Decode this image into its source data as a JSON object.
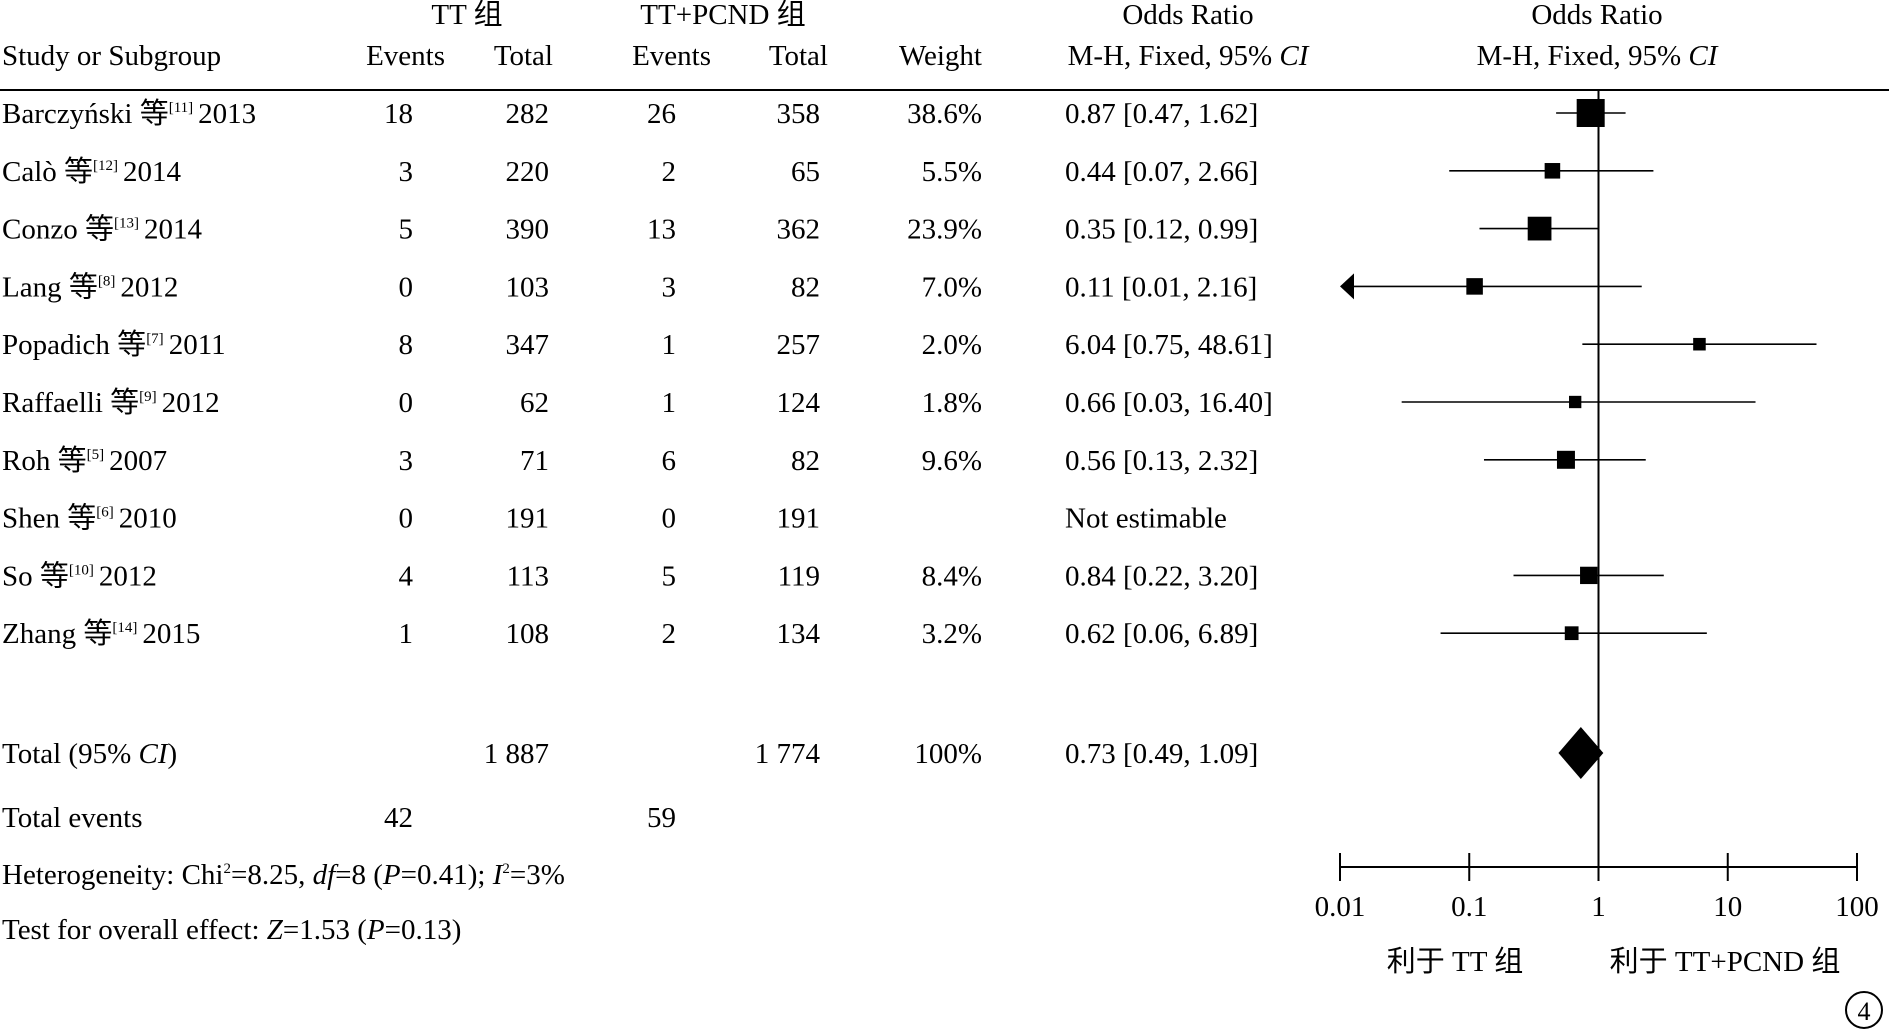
{
  "chart_data": {
    "type": "forest",
    "scale": "log",
    "xlim": [
      0.01,
      100
    ],
    "x_ticks": [
      "0.01",
      "0.1",
      "1",
      "10",
      "100"
    ],
    "x_tick_values": [
      0.01,
      0.1,
      1,
      10,
      100
    ],
    "group1_label": "TT 组",
    "group2_label": "TT+PCND 组",
    "header": {
      "study": "Study or Subgroup",
      "events": "Events",
      "total": "Total",
      "weight": "Weight",
      "or_title": "Odds Ratio",
      "or_method_text": "M-H, Fixed, 95% ",
      "or_method_ci": "CI"
    },
    "studies": [
      {
        "author": "Barczyński 等",
        "ref": "[11]",
        "year": "2013",
        "e1": "18",
        "t1": "282",
        "e2": "26",
        "t2": "358",
        "weight": "38.6%",
        "or_text": "0.87 [0.47, 1.62]",
        "or": 0.87,
        "lo": 0.47,
        "hi": 1.62,
        "w": 38.6
      },
      {
        "author": "Calò 等",
        "ref": "[12]",
        "year": "2014",
        "e1": "3",
        "t1": "220",
        "e2": "2",
        "t2": "65",
        "weight": "5.5%",
        "or_text": "0.44 [0.07, 2.66]",
        "or": 0.44,
        "lo": 0.07,
        "hi": 2.66,
        "w": 5.5
      },
      {
        "author": "Conzo 等",
        "ref": "[13]",
        "year": "2014",
        "e1": "5",
        "t1": "390",
        "e2": "13",
        "t2": "362",
        "weight": "23.9%",
        "or_text": "0.35 [0.12, 0.99]",
        "or": 0.35,
        "lo": 0.12,
        "hi": 0.99,
        "w": 23.9
      },
      {
        "author": "Lang 等",
        "ref": "[8]",
        "year": "2012",
        "e1": "0",
        "t1": "103",
        "e2": "3",
        "t2": "82",
        "weight": "7.0%",
        "or_text": "0.11 [0.01, 2.16]",
        "or": 0.11,
        "lo": 0.01,
        "hi": 2.16,
        "w": 7.0,
        "arrow_left": true
      },
      {
        "author": "Popadich 等",
        "ref": "[7]",
        "year": "2011",
        "e1": "8",
        "t1": "347",
        "e2": "1",
        "t2": "257",
        "weight": "2.0%",
        "or_text": "6.04 [0.75, 48.61]",
        "or": 6.04,
        "lo": 0.75,
        "hi": 48.61,
        "w": 2.0
      },
      {
        "author": "Raffaelli 等",
        "ref": "[9]",
        "year": "2012",
        "e1": "0",
        "t1": "62",
        "e2": "1",
        "t2": "124",
        "weight": "1.8%",
        "or_text": "0.66 [0.03, 16.40]",
        "or": 0.66,
        "lo": 0.03,
        "hi": 16.4,
        "w": 1.8
      },
      {
        "author": "Roh 等",
        "ref": "[5]",
        "year": "2007",
        "e1": "3",
        "t1": "71",
        "e2": "6",
        "t2": "82",
        "weight": "9.6%",
        "or_text": "0.56 [0.13, 2.32]",
        "or": 0.56,
        "lo": 0.13,
        "hi": 2.32,
        "w": 9.6
      },
      {
        "author": "Shen 等",
        "ref": "[6]",
        "year": "2010",
        "e1": "0",
        "t1": "191",
        "e2": "0",
        "t2": "191",
        "weight": "",
        "or_text": "Not estimable",
        "or": null,
        "lo": null,
        "hi": null,
        "w": null
      },
      {
        "author": "So 等",
        "ref": "[10]",
        "year": "2012",
        "e1": "4",
        "t1": "113",
        "e2": "5",
        "t2": "119",
        "weight": "8.4%",
        "or_text": "0.84 [0.22, 3.20]",
        "or": 0.84,
        "lo": 0.22,
        "hi": 3.2,
        "w": 8.4
      },
      {
        "author": "Zhang 等",
        "ref": "[14]",
        "year": "2015",
        "e1": "1",
        "t1": "108",
        "e2": "2",
        "t2": "134",
        "weight": "3.2%",
        "or_text": "0.62 [0.06, 6.89]",
        "or": 0.62,
        "lo": 0.06,
        "hi": 6.89,
        "w": 3.2
      }
    ],
    "total": {
      "label_text": "Total (95% ",
      "label_ci": "CI",
      "label_close": ")",
      "t1": "1 887",
      "t2": "1 774",
      "weight": "100%",
      "or_text": "0.73 [0.49, 1.09]",
      "or": 0.73,
      "lo": 0.49,
      "hi": 1.09
    },
    "total_events": {
      "label": "Total events",
      "e1": "42",
      "e2": "59"
    },
    "heterogeneity": {
      "prefix": "Heterogeneity: Chi",
      "sup1": "2",
      "chi": "=8.25, ",
      "df_label": "df",
      "df": "=8 (",
      "p_label": "P",
      "p": "=0.41); ",
      "i_label": "I",
      "sup2": "2",
      "i": "=3%"
    },
    "overall": {
      "prefix": "Test for overall effect: ",
      "z_label": "Z",
      "z": "=1.53 (",
      "p_label": "P",
      "p": "=0.13)"
    },
    "favours_left": "利于 TT 组",
    "favours_right": "利于 TT+PCND 组"
  },
  "figure_number": "4"
}
